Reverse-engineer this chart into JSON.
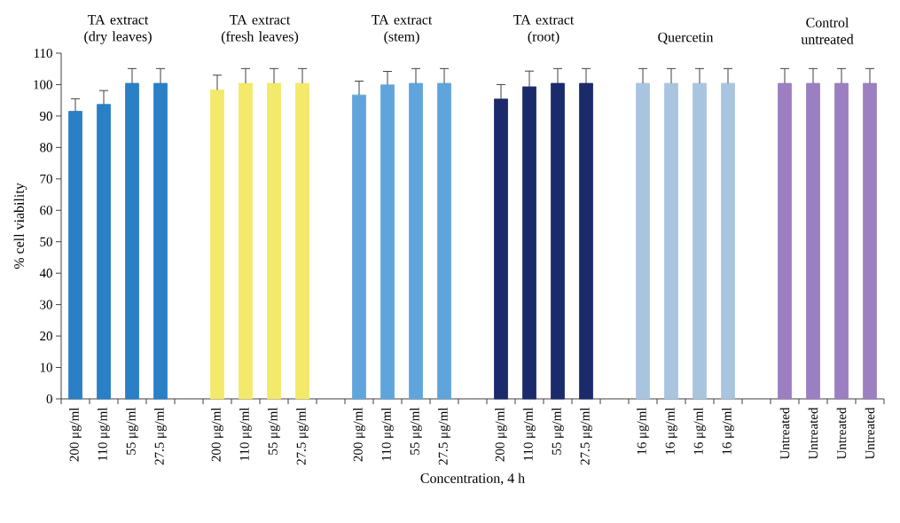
{
  "chart_data": {
    "type": "bar",
    "xlabel": "Concentration, 4 h",
    "ylabel": "% cell viability",
    "categories": [
      "200 μg/ml",
      "110 μg/ml",
      "55 μg/ml",
      "27.5 μg/ml",
      null,
      "200 μg/ml",
      "110 μg/ml",
      "55 μg/ml",
      "27.5 μg/ml",
      null,
      "200 μg/ml",
      "110 μg/ml",
      "55 μg/ml",
      "27.5 μg/ml",
      null,
      "200 μg/ml",
      "110 μg/ml",
      "55 μg/ml",
      "27.5 μg/ml",
      null,
      "16 μg/ml",
      "16 μg/ml",
      "16 μg/ml",
      "16 μg/ml",
      null,
      "Untreated",
      "Untreated",
      "Untreated",
      "Untreated"
    ],
    "values": [
      91.5,
      93.7,
      100.4,
      100.4,
      null,
      98.3,
      100.4,
      100.4,
      100.4,
      null,
      96.7,
      99.9,
      100.4,
      100.4,
      null,
      95.4,
      99.3,
      100.4,
      100.4,
      null,
      100.4,
      100.4,
      100.4,
      100.4,
      null,
      100.4,
      100.4,
      100.4,
      100.4
    ],
    "errors": [
      4.0,
      4.4,
      4.7,
      4.7,
      null,
      4.7,
      4.7,
      4.7,
      4.7,
      null,
      4.4,
      4.3,
      4.7,
      4.7,
      null,
      4.6,
      5.0,
      4.7,
      4.7,
      null,
      4.7,
      4.7,
      4.7,
      4.7,
      null,
      4.7,
      4.7,
      4.7,
      4.7
    ],
    "colors": [
      "#2a7fc6",
      "#2a7fc6",
      "#2a7fc6",
      "#2a7fc6",
      null,
      "#f3e96a",
      "#f3e96a",
      "#f3e96a",
      "#f3e96a",
      null,
      "#5fa5dc",
      "#5fa5dc",
      "#5fa5dc",
      "#5fa5dc",
      null,
      "#1b2a6b",
      "#1b2a6b",
      "#1b2a6b",
      "#1b2a6b",
      null,
      "#a9c4df",
      "#a9c4df",
      "#a9c4df",
      "#a9c4df",
      null,
      "#9b7fc0",
      "#9b7fc0",
      "#9b7fc0",
      "#9b7fc0"
    ],
    "annotations": [
      "TA extract (dry leaves)",
      "TA extract (fresh leaves)",
      "TA extract (stem)",
      "TA extract (root)",
      "Quercetin",
      "Control untreated"
    ],
    "ylim": [
      0,
      110
    ],
    "yticks": [
      0,
      10,
      20,
      30,
      40,
      50,
      60,
      70,
      80,
      90,
      100,
      110
    ],
    "grid": false
  }
}
